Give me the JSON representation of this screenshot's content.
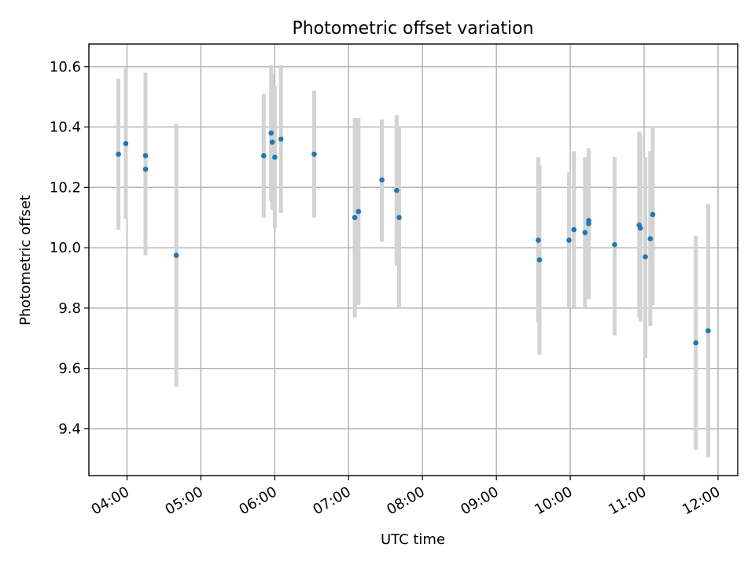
{
  "chart_data": {
    "type": "scatter",
    "title": "Photometric offset variation",
    "xlabel": "UTC time",
    "ylabel": "Photometric offset",
    "x_unit": "time (HH:MM UTC)",
    "xlim": [
      "03:29",
      "12:16"
    ],
    "ylim": [
      9.245,
      10.675
    ],
    "grid": true,
    "colors": {
      "marker": "#1f77b4",
      "errorbar": "#d3d3d3",
      "grid": "#b0b0b0"
    },
    "x_ticks": [
      "04:00",
      "05:00",
      "06:00",
      "07:00",
      "08:00",
      "09:00",
      "10:00",
      "11:00",
      "12:00"
    ],
    "y_ticks": [
      9.4,
      9.6,
      9.8,
      10.0,
      10.2,
      10.4,
      10.6
    ],
    "points": [
      {
        "x": "03:53",
        "y": 10.31,
        "ylo": 10.06,
        "yhi": 10.56
      },
      {
        "x": "03:59",
        "y": 10.345,
        "ylo": 10.095,
        "yhi": 10.595
      },
      {
        "x": "04:15",
        "y": 10.305,
        "ylo": 10.03,
        "yhi": 10.58
      },
      {
        "x": "04:15",
        "y": 10.26,
        "ylo": 9.975,
        "yhi": 10.545
      },
      {
        "x": "04:40",
        "y": 9.975,
        "ylo": 9.54,
        "yhi": 10.41
      },
      {
        "x": "05:51",
        "y": 10.305,
        "ylo": 10.1,
        "yhi": 10.51
      },
      {
        "x": "05:57",
        "y": 10.38,
        "ylo": 10.155,
        "yhi": 10.605
      },
      {
        "x": "05:58",
        "y": 10.35,
        "ylo": 10.125,
        "yhi": 10.575
      },
      {
        "x": "06:00",
        "y": 10.3,
        "ylo": 10.065,
        "yhi": 10.535
      },
      {
        "x": "06:05",
        "y": 10.36,
        "ylo": 10.115,
        "yhi": 10.605
      },
      {
        "x": "06:32",
        "y": 10.31,
        "ylo": 10.1,
        "yhi": 10.52
      },
      {
        "x": "07:05",
        "y": 10.1,
        "ylo": 9.77,
        "yhi": 10.43
      },
      {
        "x": "07:08",
        "y": 10.12,
        "ylo": 9.81,
        "yhi": 10.43
      },
      {
        "x": "07:27",
        "y": 10.225,
        "ylo": 10.02,
        "yhi": 10.425
      },
      {
        "x": "07:39",
        "y": 10.19,
        "ylo": 9.94,
        "yhi": 10.44
      },
      {
        "x": "07:41",
        "y": 10.1,
        "ylo": 9.8,
        "yhi": 10.4
      },
      {
        "x": "09:34",
        "y": 10.025,
        "ylo": 9.75,
        "yhi": 10.3
      },
      {
        "x": "09:35",
        "y": 9.96,
        "ylo": 9.645,
        "yhi": 10.275
      },
      {
        "x": "09:59",
        "y": 10.025,
        "ylo": 9.8,
        "yhi": 10.25
      },
      {
        "x": "10:03",
        "y": 10.06,
        "ylo": 9.8,
        "yhi": 10.32
      },
      {
        "x": "10:12",
        "y": 10.05,
        "ylo": 9.8,
        "yhi": 10.3
      },
      {
        "x": "10:15",
        "y": 10.09,
        "ylo": 9.855,
        "yhi": 10.325
      },
      {
        "x": "10:15",
        "y": 10.08,
        "ylo": 9.83,
        "yhi": 10.33
      },
      {
        "x": "10:36",
        "y": 10.01,
        "ylo": 9.71,
        "yhi": 10.3
      },
      {
        "x": "10:56",
        "y": 10.075,
        "ylo": 9.77,
        "yhi": 10.385
      },
      {
        "x": "10:57",
        "y": 10.065,
        "ylo": 9.755,
        "yhi": 10.375
      },
      {
        "x": "11:01",
        "y": 9.97,
        "ylo": 9.635,
        "yhi": 10.3
      },
      {
        "x": "11:05",
        "y": 10.03,
        "ylo": 9.74,
        "yhi": 10.32
      },
      {
        "x": "11:07",
        "y": 10.11,
        "ylo": 9.81,
        "yhi": 10.4
      },
      {
        "x": "11:42",
        "y": 9.685,
        "ylo": 9.33,
        "yhi": 10.04
      },
      {
        "x": "11:52",
        "y": 9.725,
        "ylo": 9.305,
        "yhi": 10.145
      }
    ]
  }
}
